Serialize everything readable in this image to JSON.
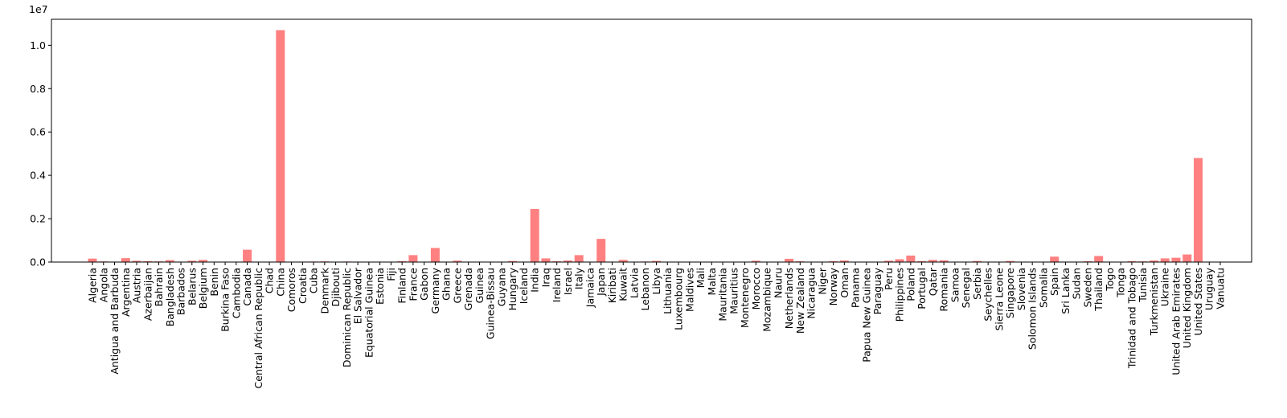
{
  "chart_data": {
    "type": "bar",
    "title": "",
    "xlabel": "",
    "ylabel": "",
    "y_multiplier": "1e7",
    "ylim": [
      0,
      11200000
    ],
    "yticks": [
      0,
      2000000,
      4000000,
      6000000,
      8000000,
      10000000
    ],
    "ytick_labels": [
      "0.0",
      "0.2",
      "0.4",
      "0.6",
      "0.8",
      "1.0"
    ],
    "bar_color": "#ff8080",
    "grid": false,
    "legend": "none",
    "categories": [
      "Algeria",
      "Angola",
      "Antigua and Barbuda",
      "Argentina",
      "Austria",
      "Azerbaijan",
      "Bahrain",
      "Bangladesh",
      "Barbados",
      "Belarus",
      "Belgium",
      "Benin",
      "Burkina Faso",
      "Cambodia",
      "Canada",
      "Central African Republic",
      "Chad",
      "China",
      "Comoros",
      "Croatia",
      "Cuba",
      "Denmark",
      "Djibouti",
      "Dominican Republic",
      "El Salvador",
      "Equatorial Guinea",
      "Estonia",
      "Fiji",
      "Finland",
      "France",
      "Gabon",
      "Germany",
      "Ghana",
      "Greece",
      "Grenada",
      "Guinea",
      "Guinea-Bissau",
      "Guyana",
      "Hungary",
      "Iceland",
      "India",
      "Iraq",
      "Ireland",
      "Israel",
      "Italy",
      "Jamaica",
      "Japan",
      "Kiribati",
      "Kuwait",
      "Latvia",
      "Lebanon",
      "Libya",
      "Lithuania",
      "Luxembourg",
      "Maldives",
      "Mali",
      "Malta",
      "Mauritania",
      "Mauritius",
      "Montenegro",
      "Morocco",
      "Mozambique",
      "Nauru",
      "Netherlands",
      "New Zealand",
      "Nicaragua",
      "Niger",
      "Norway",
      "Oman",
      "Panama",
      "Papua New Guinea",
      "Paraguay",
      "Peru",
      "Philippines",
      "Poland",
      "Portugal",
      "Qatar",
      "Romania",
      "Samoa",
      "Senegal",
      "Serbia",
      "Seychelles",
      "Sierra Leone",
      "Singapore",
      "Slovenia",
      "Solomon Islands",
      "Somalia",
      "Spain",
      "Sri Lanka",
      "Sudan",
      "Sweden",
      "Thailand",
      "Togo",
      "Tonga",
      "Trinidad and Tobago",
      "Tunisia",
      "Turkmenistan",
      "Ukraine",
      "United Arab Emirates",
      "United Kingdom",
      "United States",
      "Uruguay",
      "Vanuatu"
    ],
    "values": [
      160000,
      30000,
      1000,
      180000,
      60000,
      40000,
      30000,
      90000,
      1000,
      60000,
      100000,
      10000,
      5000,
      10000,
      570000,
      1000,
      2000,
      10700000,
      1000,
      20000,
      25000,
      30000,
      1000,
      25000,
      7000,
      7000,
      15000,
      2000,
      40000,
      320000,
      5000,
      650000,
      15000,
      65000,
      1000,
      3000,
      1000,
      2000,
      50000,
      2000,
      2450000,
      170000,
      35000,
      70000,
      320000,
      8000,
      1070000,
      1000,
      100000,
      8000,
      25000,
      55000,
      12000,
      9000,
      2000,
      5000,
      2000,
      5000,
      4000,
      3000,
      60000,
      5000,
      1000,
      150000,
      35000,
      5000,
      2000,
      40000,
      70000,
      10000,
      7000,
      7000,
      60000,
      130000,
      300000,
      45000,
      100000,
      80000,
      500,
      10000,
      50000,
      1000,
      1000,
      50000,
      14000,
      500,
      1000,
      250000,
      20000,
      20000,
      40000,
      280000,
      3000,
      500,
      40000,
      30000,
      70000,
      170000,
      200000,
      350000,
      4800000,
      7000,
      500
    ]
  }
}
